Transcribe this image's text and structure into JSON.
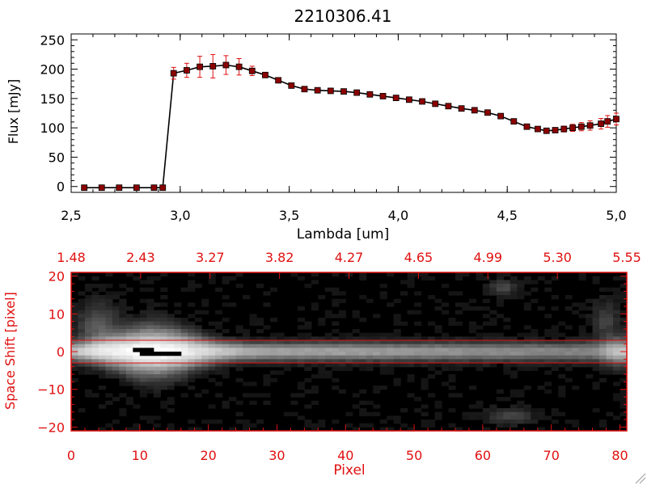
{
  "chart_data": [
    {
      "type": "line",
      "title": "2210306.41",
      "xlabel": "Lambda [um]",
      "ylabel": "Flux [mJy]",
      "xlim": [
        2.5,
        5.0
      ],
      "ylim": [
        -10,
        260
      ],
      "xticks": [
        "2.5",
        "3.0",
        "3.5",
        "4.0",
        "4.5",
        "5.0"
      ],
      "yticks": [
        "0",
        "50",
        "100",
        "150",
        "200",
        "250"
      ],
      "grid": false,
      "series": [
        {
          "x": [
            2.56,
            2.64,
            2.72,
            2.8,
            2.88,
            2.92,
            2.97,
            3.03,
            3.09,
            3.15,
            3.21,
            3.27,
            3.33,
            3.39,
            3.45,
            3.51,
            3.57,
            3.63,
            3.69,
            3.75,
            3.81,
            3.87,
            3.93,
            3.99,
            4.05,
            4.11,
            4.17,
            4.23,
            4.29,
            4.35,
            4.41,
            4.47,
            4.53,
            4.59,
            4.64,
            4.68,
            4.72,
            4.76,
            4.8,
            4.84,
            4.88,
            4.93,
            4.96,
            5.0
          ],
          "y": [
            -2,
            -2,
            -2,
            -2,
            -2,
            -2,
            193,
            198,
            204,
            205,
            207,
            204,
            197,
            190,
            181,
            172,
            166,
            164,
            163,
            162,
            160,
            157,
            154,
            151,
            148,
            145,
            141,
            137,
            133,
            130,
            126,
            120,
            111,
            102,
            98,
            95,
            96,
            98,
            100,
            102,
            104,
            107,
            111,
            115
          ],
          "err": [
            0,
            0,
            0,
            0,
            0,
            0,
            10,
            12,
            18,
            20,
            16,
            14,
            8,
            4,
            3,
            3,
            3,
            3,
            3,
            3,
            3,
            3,
            3,
            3,
            3,
            3,
            3,
            3,
            3,
            3,
            3,
            3,
            3,
            3,
            3,
            3,
            4,
            5,
            6,
            7,
            8,
            9,
            10,
            10
          ],
          "color": "#000000",
          "marker_color": "#8b0000",
          "errorbar_color": "#e01010"
        }
      ]
    },
    {
      "type": "heatmap",
      "xlabel": "Pixel",
      "ylabel": "Space Shift [pixel]",
      "xlim": [
        0,
        81
      ],
      "ylim": [
        -21,
        21
      ],
      "xticks": [
        "0",
        "10",
        "20",
        "30",
        "40",
        "50",
        "60",
        "70",
        "80"
      ],
      "yticks": [
        "-20",
        "-10",
        "0",
        "10",
        "20"
      ],
      "top_ticks": [
        "1.48",
        "2.43",
        "3.27",
        "3.82",
        "4.27",
        "4.65",
        "4.99",
        "5.30",
        "5.55"
      ],
      "overlay_lines_y": [
        3,
        -3
      ],
      "colormap": "grayscale",
      "frame_color": "#e01010",
      "overlay_color": "#e01010"
    }
  ],
  "colors": {
    "axis": "#000000",
    "accent": "#e01010"
  }
}
